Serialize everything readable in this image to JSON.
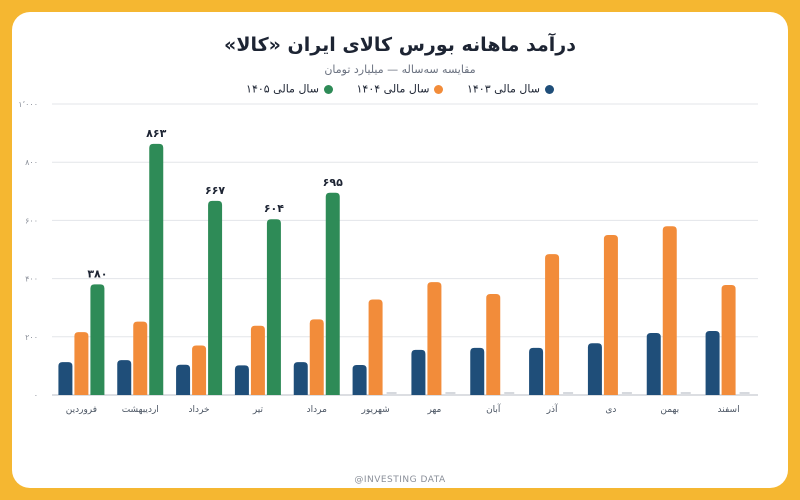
{
  "chart_data": {
    "type": "bar",
    "title": "درآمد ماهانه بورس کالای ایران «کالا»",
    "subtitle": "مقایسه سه‌ساله — میلیارد تومان",
    "categories": [
      "فروردین",
      "اردیبهشت",
      "خرداد",
      "تیر",
      "مرداد",
      "شهریور",
      "مهر",
      "آبان",
      "آذر",
      "دی",
      "بهمن",
      "اسفند"
    ],
    "series": [
      {
        "name": "سال مالی ۱۴۰۳",
        "color": "#1F4E79",
        "values": [
          113,
          120,
          104,
          102,
          113,
          103,
          155,
          162,
          162,
          178,
          213,
          220
        ]
      },
      {
        "name": "سال مالی ۱۴۰۴",
        "color": "#F28C3A",
        "values": [
          216,
          252,
          170,
          238,
          260,
          328,
          388,
          347,
          484,
          550,
          580,
          378
        ]
      },
      {
        "name": "سال مالی ۱۴۰۵",
        "color": "#2E8B57",
        "values": [
          380,
          863,
          667,
          604,
          695,
          null,
          null,
          null,
          null,
          null,
          null,
          null
        ]
      }
    ],
    "data_labels": [
      "۳۸۰",
      "۸۶۳",
      "۶۶۷",
      "۶۰۴",
      "۶۹۵"
    ],
    "ytick_labels": [
      "۰",
      "۲۰۰",
      "۴۰۰",
      "۶۰۰",
      "۸۰۰",
      "۱٬۰۰۰"
    ],
    "ytick_values": [
      0,
      200,
      400,
      600,
      800,
      1000
    ],
    "ylim": [
      0,
      1000
    ],
    "grid": true,
    "legend_position": "top-center"
  },
  "watermark": "@INVESTING DATA"
}
